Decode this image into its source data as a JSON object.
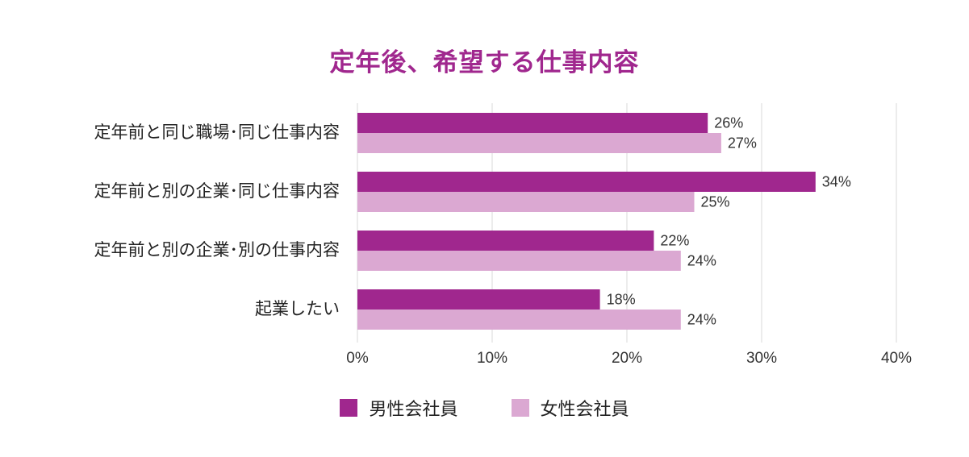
{
  "chart_data": {
    "type": "bar",
    "orientation": "horizontal",
    "title": "定年後、希望する仕事内容",
    "categories": [
      "定年前と同じ職場･同じ仕事内容",
      "定年前と別の企業･同じ仕事内容",
      "定年前と別の企業･別の仕事内容",
      "起業したい"
    ],
    "series": [
      {
        "name": "男性会社員",
        "values": [
          26,
          34,
          22,
          18
        ],
        "labels": [
          "26%",
          "34%",
          "22%",
          "18%"
        ],
        "color": "#a0278e"
      },
      {
        "name": "女性会社員",
        "values": [
          27,
          25,
          24,
          24
        ],
        "labels": [
          "27%",
          "25%",
          "24%",
          "24%"
        ],
        "color": "#dba8d2"
      }
    ],
    "xlim": [
      0,
      40
    ],
    "xticks": [
      0,
      10,
      20,
      30,
      40
    ],
    "xtick_labels": [
      "0%",
      "10%",
      "20%",
      "30%",
      "40%"
    ],
    "grid": true,
    "legend": "bottom-center"
  }
}
